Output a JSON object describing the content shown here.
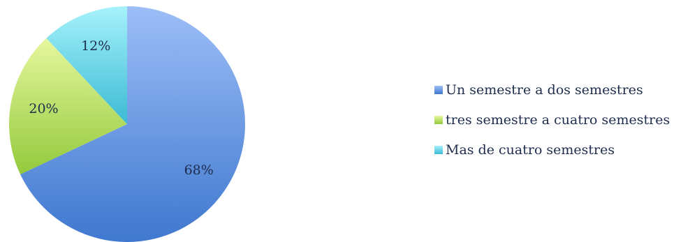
{
  "chart_data": {
    "type": "pie",
    "title": "",
    "legend_position": "right",
    "slices": [
      {
        "label": "Un semestre a dos semestres",
        "value": 68,
        "display": "68%",
        "color_light": "#9dbef7",
        "color_dark": "#3f78cf"
      },
      {
        "label": "tres semestre a cuatro semestres",
        "value": 20,
        "display": "20%",
        "color_light": "#e6f79e",
        "color_dark": "#93c93c"
      },
      {
        "label": "Mas de cuatro semestres",
        "value": 12,
        "display": "12%",
        "color_light": "#a6f2fb",
        "color_dark": "#3bbad4"
      }
    ]
  }
}
